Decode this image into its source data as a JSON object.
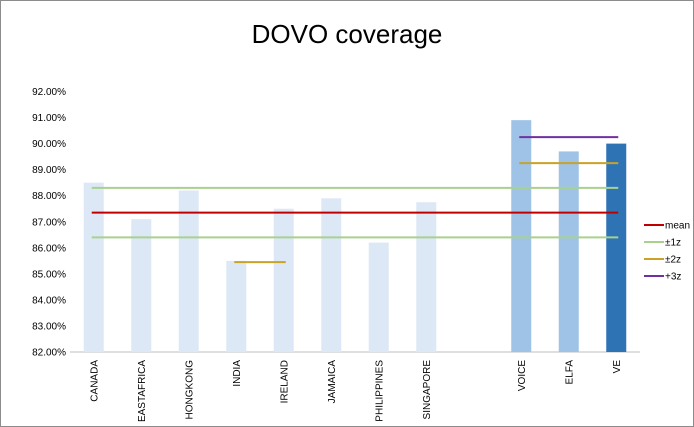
{
  "chart_data": {
    "type": "bar",
    "title": "DOVO coverage",
    "xlabel": "",
    "ylabel": "",
    "ylim": [
      0.82,
      0.92
    ],
    "y_ticks": [
      "82.00%",
      "83.00%",
      "84.00%",
      "85.00%",
      "86.00%",
      "87.00%",
      "88.00%",
      "89.00%",
      "90.00%",
      "91.00%",
      "92.00%"
    ],
    "grid": false,
    "legend_position": "right",
    "categories": [
      "CANADA",
      "EASTAFRICA",
      "HONGKONG",
      "INDIA",
      "IRELAND",
      "JAMAICA",
      "PHILIPPINES",
      "SINGAPORE",
      "",
      "VOICE",
      "ELFA",
      "VE"
    ],
    "values": [
      0.885,
      0.871,
      0.882,
      0.855,
      0.875,
      0.879,
      0.862,
      0.8775,
      null,
      0.909,
      0.897,
      0.9
    ],
    "bar_colors": [
      "#dde8f6",
      "#dde8f6",
      "#dde8f6",
      "#dde8f6",
      "#dde8f6",
      "#dde8f6",
      "#dde8f6",
      "#dde8f6",
      "#ffffff",
      "#9fc3e7",
      "#9fc3e7",
      "#2e74b5"
    ],
    "reference_lines": [
      {
        "name": "mean",
        "color": "#c00000",
        "value": 0.8735,
        "from": "CANADA",
        "to": "VE"
      },
      {
        "name": "±1z",
        "color": "#a9d18e",
        "value": 0.883,
        "from": "CANADA",
        "to": "VE"
      },
      {
        "name": "±1z",
        "color": "#a9d18e",
        "value": 0.864,
        "from": "CANADA",
        "to": "VE"
      },
      {
        "name": "±2z",
        "color": "#c9a227",
        "value": 0.8545,
        "from": "INDIA",
        "to": "IRELAND"
      },
      {
        "name": "±2z",
        "color": "#c9a227",
        "value": 0.8925,
        "from": "VOICE",
        "to": "VE"
      },
      {
        "name": "+3z",
        "color": "#7030a0",
        "value": 0.9025,
        "from": "VOICE",
        "to": "VE"
      }
    ],
    "legend": [
      {
        "name": "mean",
        "color": "#c00000"
      },
      {
        "name": "±1z",
        "color": "#a9d18e"
      },
      {
        "name": "±2z",
        "color": "#c9a227"
      },
      {
        "name": "+3z",
        "color": "#7030a0"
      }
    ]
  }
}
